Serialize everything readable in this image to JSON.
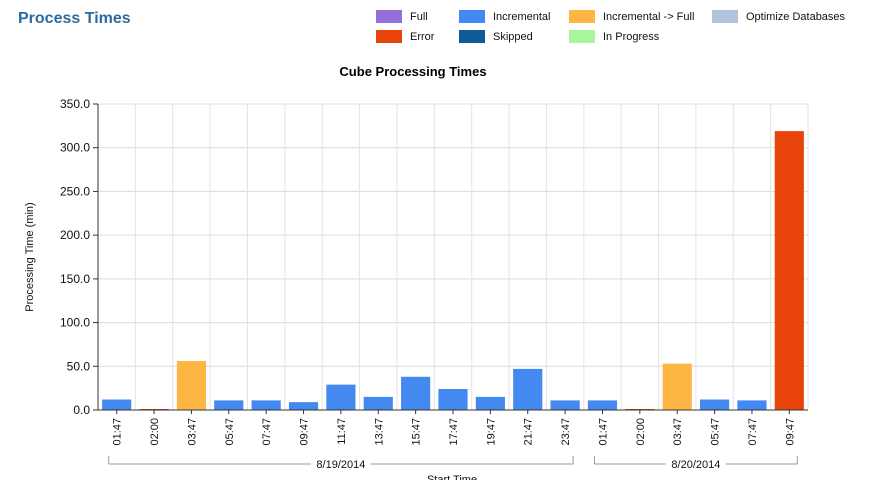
{
  "page": {
    "title": "Process Times"
  },
  "legend": [
    {
      "label": "Full",
      "color": "#9370db"
    },
    {
      "label": "Error",
      "color": "#e8440a"
    },
    {
      "label": "Incremental",
      "color": "#4489f0"
    },
    {
      "label": "Skipped",
      "color": "#0e5b96"
    },
    {
      "label": "Incremental -> Full",
      "color": "#fdb544"
    },
    {
      "label": "In Progress",
      "color": "#a9f79c"
    },
    {
      "label": "Optimize Databases",
      "color": "#b0c4de"
    }
  ],
  "chart_data": {
    "type": "bar",
    "title": "Cube Processing Times",
    "ylabel": "Processing Time (min)",
    "xlabel": "Start Time",
    "ylim": [
      0,
      350
    ],
    "yticks": [
      "0.0",
      "50.0",
      "100.0",
      "150.0",
      "200.0",
      "250.0",
      "300.0",
      "350.0"
    ],
    "grid": true,
    "categories": [
      "01:47",
      "02:00",
      "03:47",
      "05:47",
      "07:47",
      "09:47",
      "11:47",
      "13:47",
      "15:47",
      "17:47",
      "19:47",
      "21:47",
      "23:47",
      "01:47",
      "02:00",
      "03:47",
      "05:47",
      "07:47",
      "09:47"
    ],
    "values": [
      12,
      1,
      56,
      11,
      11,
      9,
      29,
      15,
      38,
      24,
      15,
      47,
      11,
      11,
      1,
      53,
      12,
      11,
      319
    ],
    "types": [
      "Incremental",
      "Error",
      "Incremental -> Full",
      "Incremental",
      "Incremental",
      "Incremental",
      "Incremental",
      "Incremental",
      "Incremental",
      "Incremental",
      "Incremental",
      "Incremental",
      "Incremental",
      "Incremental",
      "Error",
      "Incremental -> Full",
      "Incremental",
      "Incremental",
      "Error"
    ],
    "groups": [
      {
        "label": "8/19/2014",
        "start": 0,
        "end": 12
      },
      {
        "label": "8/20/2014",
        "start": 13,
        "end": 18
      }
    ]
  }
}
